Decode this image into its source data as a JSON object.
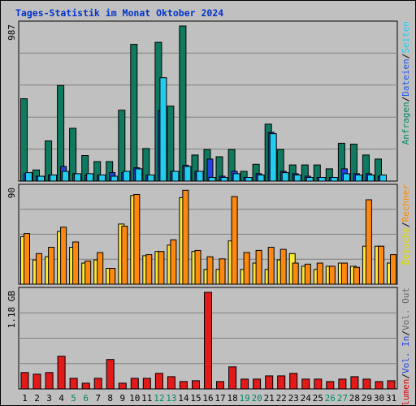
{
  "chart_data": {
    "type": "bar",
    "title": "Tages-Statistik im Monat Oktober 2024",
    "days": [
      "1",
      "2",
      "3",
      "4",
      "5",
      "6",
      "7",
      "8",
      "9",
      "10",
      "11",
      "12",
      "13",
      "14",
      "15",
      "16",
      "17",
      "18",
      "19",
      "20",
      "21",
      "22",
      "23",
      "24",
      "25",
      "26",
      "27",
      "28",
      "29",
      "30",
      "31"
    ],
    "weekend_days": [
      "5",
      "6",
      "12",
      "13",
      "19",
      "20",
      "26",
      "27"
    ],
    "colors": {
      "day_normal": "#000000",
      "day_weekend": "#008866"
    },
    "panels": [
      {
        "id": "hits",
        "ymax_label": "987",
        "ylim": [
          0,
          987
        ],
        "legend": [
          {
            "label": "Anfragen",
            "color": "#008866"
          },
          {
            "sep": "/"
          },
          {
            "label": "Dateien",
            "color": "#2255ee"
          },
          {
            "sep": "/"
          },
          {
            "label": "Seiten",
            "color": "#22ccee"
          }
        ],
        "series": [
          {
            "name": "Anfragen",
            "color": "#0f7a60",
            "values": [
              524,
              71,
              256,
              608,
              336,
              163,
              124,
              124,
              451,
              870,
              207,
              883,
              477,
              987,
              166,
              201,
              155,
              201,
              62,
              107,
              362,
              201,
              103,
              103,
              103,
              78,
              241,
              235,
              166,
              140,
              0
            ]
          },
          {
            "name": "Dateien",
            "color": "#2244dd",
            "values": [
              47,
              31,
              39,
              93,
              47,
              39,
              39,
              54,
              54,
              85,
              39,
              449,
              62,
              101,
              62,
              140,
              31,
              62,
              23,
              47,
              310,
              62,
              47,
              31,
              23,
              23,
              78,
              47,
              47,
              31,
              0
            ]
          },
          {
            "name": "Seiten",
            "color": "#22ccee",
            "values": [
              54,
              31,
              39,
              62,
              47,
              47,
              39,
              31,
              62,
              78,
              39,
              658,
              62,
              93,
              62,
              23,
              23,
              47,
              23,
              39,
              302,
              54,
              39,
              23,
              23,
              23,
              47,
              39,
              39,
              39,
              0
            ]
          }
        ]
      },
      {
        "id": "visits",
        "ymax_label": "90",
        "ylim": [
          0,
          90
        ],
        "legend": [
          {
            "label": "Besuche",
            "color": "#dddd00"
          },
          {
            "sep": "/"
          },
          {
            "label": "Rechner",
            "color": "#ff8800"
          }
        ],
        "series": [
          {
            "name": "Besuche",
            "color": "#ffe833",
            "values": [
              45,
              23,
              26,
              50,
              35,
              20,
              23,
              15,
              57,
              84,
              27,
              31,
              37,
              82,
              31,
              14,
              14,
              41,
              14,
              20,
              14,
              23,
              29,
              17,
              14,
              17,
              20,
              17,
              36,
              36,
              20
            ]
          },
          {
            "name": "Rechner",
            "color": "#ff8811",
            "values": [
              48,
              29,
              35,
              54,
              40,
              22,
              30,
              15,
              55,
              85,
              28,
              31,
              42,
              89,
              32,
              26,
              24,
              83,
              30,
              32,
              35,
              33,
              20,
              19,
              20,
              17,
              20,
              16,
              80,
              36,
              28
            ]
          }
        ]
      },
      {
        "id": "volume",
        "ymax_label": "1.18 GB",
        "ylim": [
          0,
          1.18
        ],
        "legend": [
          {
            "label": "Volumen",
            "color": "#dd0000"
          },
          {
            "sep": "/"
          },
          {
            "label": "Vol. In",
            "color": "#2244dd"
          },
          {
            "sep": "/"
          },
          {
            "label": "Vol. Out",
            "color": "#666666"
          }
        ],
        "series": [
          {
            "name": "Volumen",
            "color": "#e21a1a",
            "values": [
              0.2,
              0.18,
              0.2,
              0.4,
              0.13,
              0.07,
              0.13,
              0.36,
              0.07,
              0.13,
              0.13,
              0.19,
              0.15,
              0.09,
              0.1,
              1.18,
              0.09,
              0.27,
              0.12,
              0.12,
              0.16,
              0.16,
              0.19,
              0.12,
              0.12,
              0.09,
              0.12,
              0.15,
              0.12,
              0.09,
              0.1
            ]
          }
        ]
      }
    ]
  }
}
